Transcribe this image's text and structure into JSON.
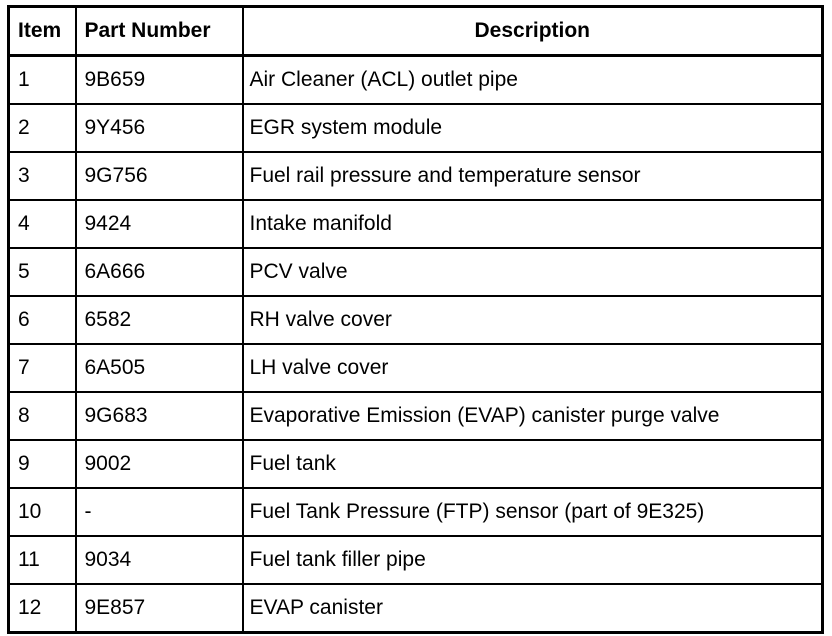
{
  "table": {
    "headers": [
      "Item",
      "Part Number",
      "Description"
    ],
    "rows": [
      [
        "1",
        "9B659",
        "Air Cleaner (ACL) outlet pipe"
      ],
      [
        "2",
        "9Y456",
        "EGR system module"
      ],
      [
        "3",
        "9G756",
        "Fuel rail pressure and temperature sensor"
      ],
      [
        "4",
        "9424",
        "Intake manifold"
      ],
      [
        "5",
        "6A666",
        "PCV valve"
      ],
      [
        "6",
        "6582",
        "RH valve cover"
      ],
      [
        "7",
        "6A505",
        "LH valve cover"
      ],
      [
        "8",
        "9G683",
        "Evaporative Emission (EVAP) canister purge valve"
      ],
      [
        "9",
        "9002",
        "Fuel tank"
      ],
      [
        "10",
        "-",
        "Fuel Tank Pressure (FTP) sensor (part of 9E325)"
      ],
      [
        "11",
        "9034",
        "Fuel tank filler pipe"
      ],
      [
        "12",
        "9E857",
        "EVAP canister"
      ]
    ]
  }
}
